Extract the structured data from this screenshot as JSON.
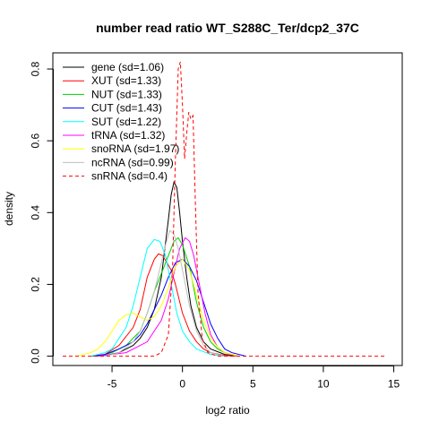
{
  "chart_data": {
    "type": "line",
    "title": "number read ratio WT_S288C_Ter/dcp2_37C",
    "xlabel": "log2 ratio",
    "ylabel": "density",
    "xlim": [
      -9.2,
      15.6
    ],
    "ylim": [
      -0.026,
      0.845
    ],
    "x_ticks": [
      -5,
      0,
      5,
      10,
      15
    ],
    "x_tick_labels": [
      "-5",
      "0",
      "5",
      "10",
      "15"
    ],
    "y_ticks": [
      0.0,
      0.2,
      0.4,
      0.6,
      0.8
    ],
    "y_tick_labels": [
      "0.0",
      "0.2",
      "0.4",
      "0.6",
      "0.8"
    ],
    "grid": false,
    "legend_position": "top-left",
    "series": [
      {
        "name": "gene (sd=1.06)",
        "color": "#000000",
        "dash": "solid",
        "points": [
          [
            -6.5,
            0.0
          ],
          [
            -5.5,
            0.002
          ],
          [
            -4.5,
            0.01
          ],
          [
            -3.5,
            0.03
          ],
          [
            -3,
            0.05
          ],
          [
            -2.5,
            0.08
          ],
          [
            -2,
            0.13
          ],
          [
            -1.5,
            0.22
          ],
          [
            -1,
            0.38
          ],
          [
            -0.8,
            0.45
          ],
          [
            -0.6,
            0.485
          ],
          [
            -0.4,
            0.47
          ],
          [
            -0.2,
            0.4
          ],
          [
            0,
            0.32
          ],
          [
            0.3,
            0.22
          ],
          [
            0.6,
            0.14
          ],
          [
            1,
            0.08
          ],
          [
            1.5,
            0.04
          ],
          [
            2,
            0.02
          ],
          [
            3,
            0.005
          ],
          [
            4,
            0.0
          ]
        ]
      },
      {
        "name": "XUT (sd=1.33)",
        "color": "#ff0000",
        "dash": "solid",
        "points": [
          [
            -6.5,
            0.0
          ],
          [
            -5.5,
            0.005
          ],
          [
            -4.5,
            0.03
          ],
          [
            -3.5,
            0.08
          ],
          [
            -3,
            0.13
          ],
          [
            -2.5,
            0.22
          ],
          [
            -2,
            0.27
          ],
          [
            -1.7,
            0.285
          ],
          [
            -1.4,
            0.28
          ],
          [
            -1.1,
            0.26
          ],
          [
            -0.8,
            0.24
          ],
          [
            -0.5,
            0.2
          ],
          [
            0,
            0.12
          ],
          [
            0.5,
            0.07
          ],
          [
            1,
            0.04
          ],
          [
            1.5,
            0.02
          ],
          [
            2,
            0.01
          ],
          [
            3,
            0.002
          ],
          [
            4,
            0.0
          ]
        ]
      },
      {
        "name": "NUT (sd=1.33)",
        "color": "#00cd00",
        "dash": "solid",
        "points": [
          [
            -6,
            0.0
          ],
          [
            -5,
            0.01
          ],
          [
            -4,
            0.03
          ],
          [
            -3,
            0.07
          ],
          [
            -2.5,
            0.12
          ],
          [
            -2,
            0.18
          ],
          [
            -1.5,
            0.23
          ],
          [
            -1,
            0.28
          ],
          [
            -0.6,
            0.32
          ],
          [
            -0.3,
            0.33
          ],
          [
            0,
            0.31
          ],
          [
            0.5,
            0.25
          ],
          [
            1,
            0.15
          ],
          [
            1.5,
            0.08
          ],
          [
            2,
            0.04
          ],
          [
            2.5,
            0.02
          ],
          [
            3,
            0.01
          ],
          [
            4,
            0.0
          ]
        ]
      },
      {
        "name": "CUT (sd=1.43)",
        "color": "#0000ff",
        "dash": "solid",
        "points": [
          [
            -6.5,
            0.0
          ],
          [
            -5.5,
            0.005
          ],
          [
            -4.5,
            0.02
          ],
          [
            -3.5,
            0.04
          ],
          [
            -3,
            0.06
          ],
          [
            -2.5,
            0.09
          ],
          [
            -2,
            0.13
          ],
          [
            -1.5,
            0.17
          ],
          [
            -1,
            0.22
          ],
          [
            -0.5,
            0.26
          ],
          [
            0,
            0.27
          ],
          [
            0.5,
            0.25
          ],
          [
            1,
            0.21
          ],
          [
            1.5,
            0.15
          ],
          [
            2,
            0.09
          ],
          [
            2.5,
            0.05
          ],
          [
            3,
            0.02
          ],
          [
            3.5,
            0.01
          ],
          [
            4.5,
            0.0
          ]
        ]
      },
      {
        "name": "SUT (sd=1.22)",
        "color": "#00ffff",
        "dash": "solid",
        "points": [
          [
            -6.5,
            0.0
          ],
          [
            -5.5,
            0.01
          ],
          [
            -5,
            0.02
          ],
          [
            -4.5,
            0.05
          ],
          [
            -4,
            0.08
          ],
          [
            -3.5,
            0.14
          ],
          [
            -3,
            0.22
          ],
          [
            -2.5,
            0.3
          ],
          [
            -2,
            0.325
          ],
          [
            -1.6,
            0.32
          ],
          [
            -1.2,
            0.28
          ],
          [
            -0.8,
            0.2
          ],
          [
            -0.4,
            0.12
          ],
          [
            0,
            0.07
          ],
          [
            0.5,
            0.04
          ],
          [
            1,
            0.02
          ],
          [
            2,
            0.005
          ],
          [
            3,
            0.0
          ]
        ]
      },
      {
        "name": "tRNA (sd=1.32)",
        "color": "#ff00ff",
        "dash": "solid",
        "points": [
          [
            -6,
            0.0
          ],
          [
            -5,
            0.005
          ],
          [
            -4,
            0.01
          ],
          [
            -3,
            0.03
          ],
          [
            -2.5,
            0.04
          ],
          [
            -2,
            0.07
          ],
          [
            -1.5,
            0.1
          ],
          [
            -1,
            0.16
          ],
          [
            -0.5,
            0.25
          ],
          [
            -0.2,
            0.3
          ],
          [
            0.2,
            0.33
          ],
          [
            0.5,
            0.32
          ],
          [
            0.8,
            0.28
          ],
          [
            1.2,
            0.2
          ],
          [
            1.6,
            0.12
          ],
          [
            2,
            0.06
          ],
          [
            2.5,
            0.025
          ],
          [
            3,
            0.01
          ],
          [
            4,
            0.0
          ]
        ]
      },
      {
        "name": "snoRNA (sd=1.97)",
        "color": "#ffff00",
        "dash": "solid",
        "points": [
          [
            -7.5,
            0.0
          ],
          [
            -6.5,
            0.01
          ],
          [
            -6,
            0.02
          ],
          [
            -5.5,
            0.04
          ],
          [
            -5,
            0.07
          ],
          [
            -4.5,
            0.1
          ],
          [
            -4,
            0.115
          ],
          [
            -3.5,
            0.12
          ],
          [
            -3,
            0.11
          ],
          [
            -2.5,
            0.1
          ],
          [
            -2,
            0.11
          ],
          [
            -1.5,
            0.14
          ],
          [
            -1,
            0.19
          ],
          [
            -0.5,
            0.25
          ],
          [
            0,
            0.27
          ],
          [
            0.5,
            0.24
          ],
          [
            1,
            0.17
          ],
          [
            1.5,
            0.1
          ],
          [
            2,
            0.05
          ],
          [
            2.5,
            0.025
          ],
          [
            3,
            0.01
          ],
          [
            4,
            0.0
          ]
        ]
      },
      {
        "name": "ncRNA (sd=0.99)",
        "color": "#bebebe",
        "dash": "solid",
        "points": [
          [
            -5.5,
            0.0
          ],
          [
            -4.5,
            0.01
          ],
          [
            -3.5,
            0.04
          ],
          [
            -3,
            0.07
          ],
          [
            -2.5,
            0.12
          ],
          [
            -2,
            0.18
          ],
          [
            -1.5,
            0.26
          ],
          [
            -1.2,
            0.31
          ],
          [
            -0.9,
            0.35
          ],
          [
            -0.6,
            0.34
          ],
          [
            -0.3,
            0.3
          ],
          [
            0,
            0.24
          ],
          [
            0.5,
            0.14
          ],
          [
            1,
            0.07
          ],
          [
            1.5,
            0.03
          ],
          [
            2,
            0.01
          ],
          [
            3,
            0.0
          ]
        ]
      },
      {
        "name": "snRNA (sd=0.4)",
        "color": "#ff0000",
        "dash": "dashed",
        "points": [
          [
            -8.5,
            0.0
          ],
          [
            -5,
            0.0
          ],
          [
            -2,
            0.0
          ],
          [
            -1.5,
            0.01
          ],
          [
            -1,
            0.06
          ],
          [
            -0.7,
            0.25
          ],
          [
            -0.5,
            0.55
          ],
          [
            -0.3,
            0.8
          ],
          [
            -0.15,
            0.82
          ],
          [
            0,
            0.7
          ],
          [
            0.15,
            0.55
          ],
          [
            0.3,
            0.62
          ],
          [
            0.45,
            0.68
          ],
          [
            0.6,
            0.66
          ],
          [
            0.75,
            0.67
          ],
          [
            0.9,
            0.45
          ],
          [
            1.1,
            0.18
          ],
          [
            1.4,
            0.05
          ],
          [
            1.8,
            0.01
          ],
          [
            2.5,
            0.0
          ],
          [
            5,
            0.0
          ],
          [
            10,
            0.0
          ],
          [
            14.5,
            0.0
          ]
        ]
      }
    ]
  }
}
